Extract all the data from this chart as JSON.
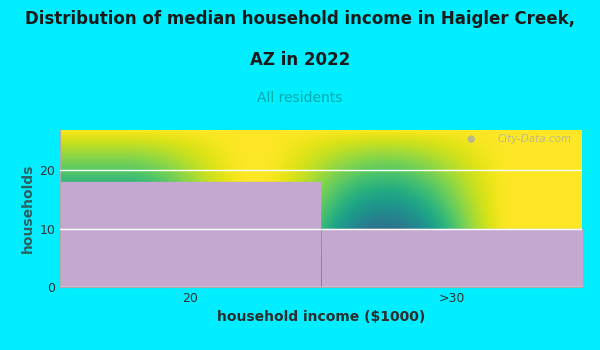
{
  "title_line1": "Distribution of median household income in Haigler Creek,",
  "title_line2": "AZ in 2022",
  "title_az": "AZ",
  "title_rest": " in 2022",
  "subtitle": "All residents",
  "categories": [
    "20",
    ">30"
  ],
  "values": [
    18,
    10
  ],
  "bar_color": "#c4a8d0",
  "background_outer": "#00eeff",
  "plot_bg": "#f0fff4",
  "ylabel": "households",
  "xlabel": "household income ($1000)",
  "ylabel_color": "#2d6060",
  "xlabel_color": "#2d2d2d",
  "title_color": "#1a1a1a",
  "subtitle_color": "#00aaaa",
  "yticks": [
    0,
    10,
    20
  ],
  "ylim": [
    0,
    27
  ],
  "watermark": "City-Data.com",
  "title_fontsize": 12,
  "subtitle_fontsize": 10,
  "axis_label_fontsize": 10,
  "tick_fontsize": 9
}
